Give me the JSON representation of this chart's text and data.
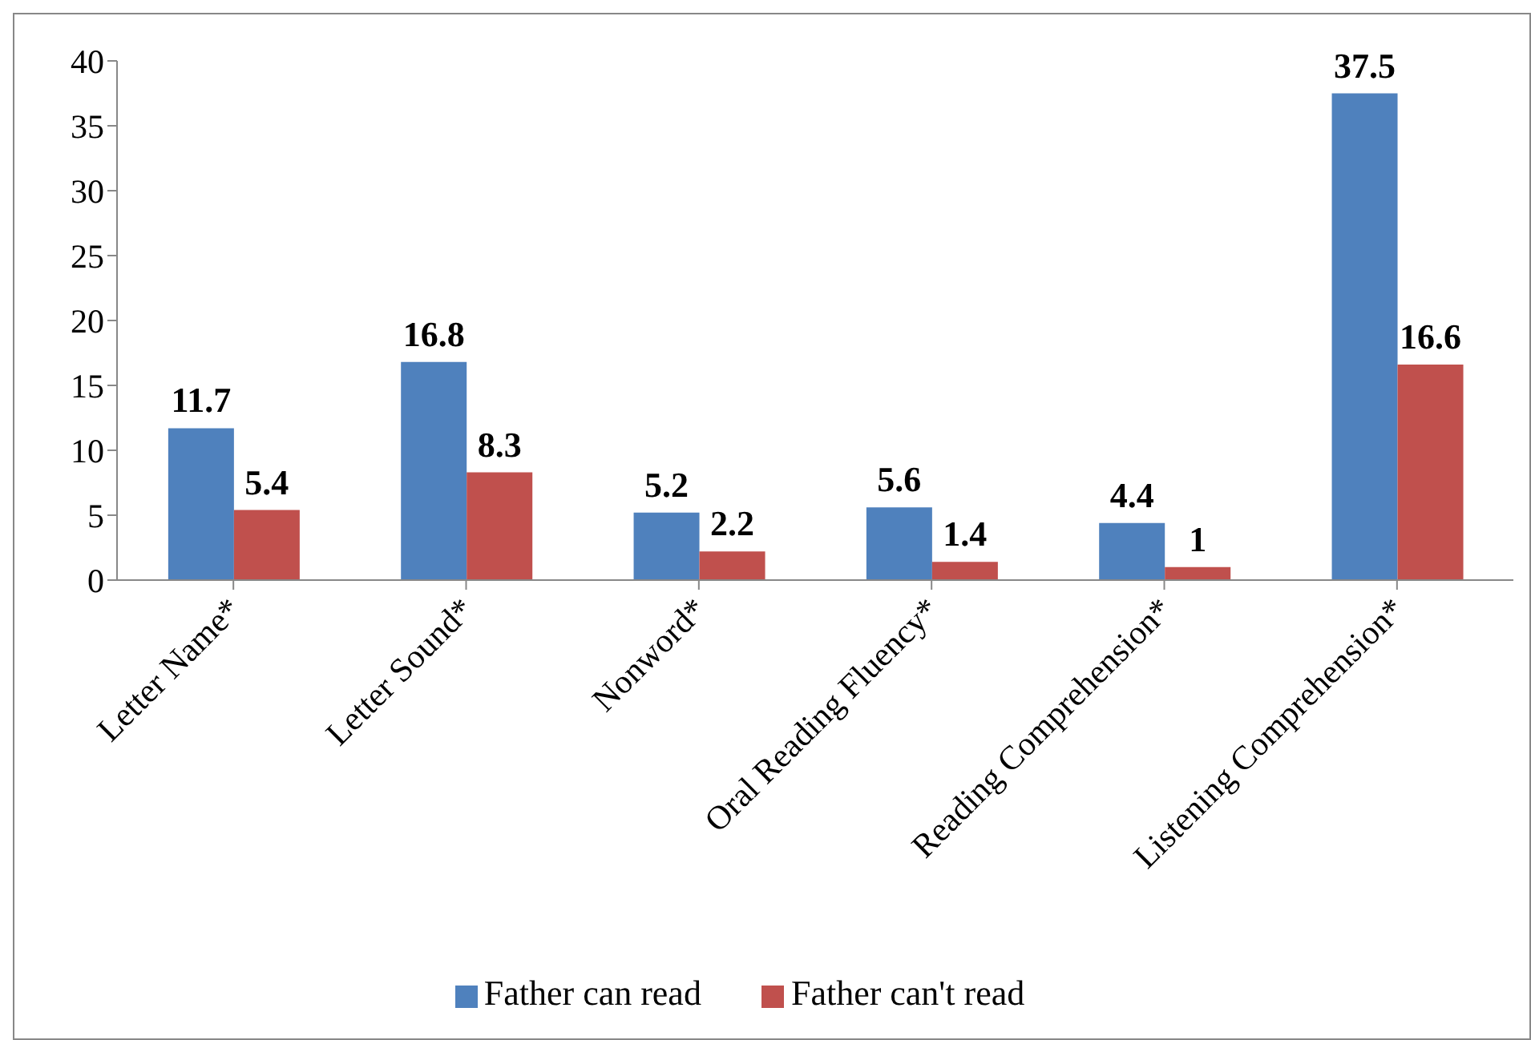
{
  "chart_data": {
    "type": "bar",
    "categories": [
      "Letter Name*",
      "Letter Sound*",
      "Nonword*",
      "Oral Reading Fluency*",
      "Reading Comprehension*",
      "Listening Comprehension*"
    ],
    "series": [
      {
        "name": "Father can read",
        "color": "#4f81bd",
        "values": [
          11.7,
          16.8,
          5.2,
          5.6,
          4.4,
          37.5
        ]
      },
      {
        "name": "Father can't read",
        "color": "#c0504d",
        "values": [
          5.4,
          8.3,
          2.2,
          1.4,
          1,
          16.6
        ]
      }
    ],
    "ylim": [
      0,
      40
    ],
    "yticks": [
      0,
      5,
      10,
      15,
      20,
      25,
      30,
      35,
      40
    ],
    "grid": false,
    "legend": "bottom",
    "data_labels": true
  }
}
